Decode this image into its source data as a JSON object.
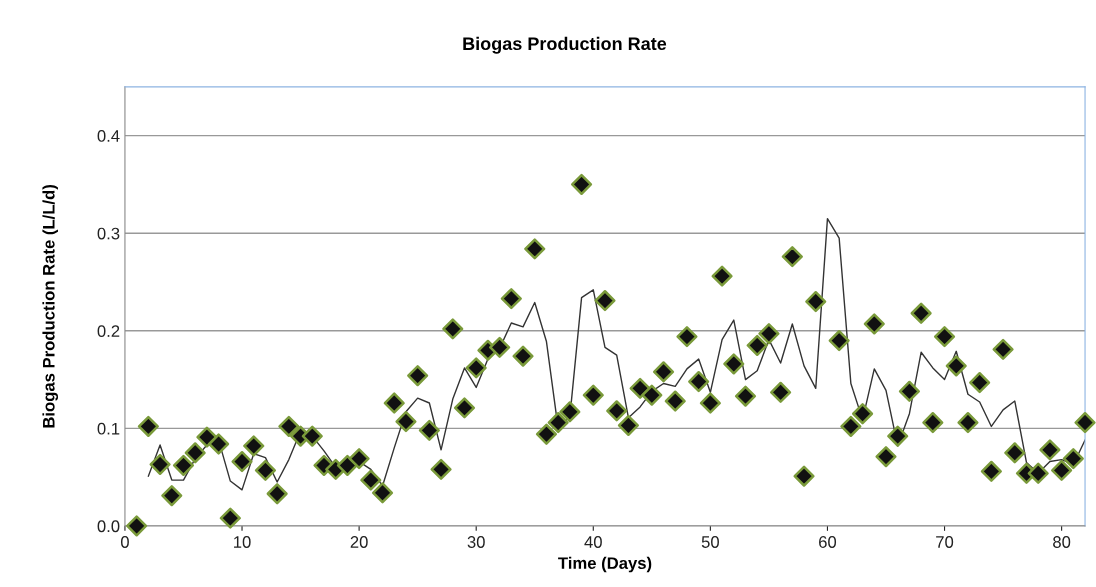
{
  "chart_data": {
    "type": "scatter",
    "title": "Biogas Production Rate",
    "xlabel": "Time (Days)",
    "ylabel": "Biogas Production Rate (L/L/d)",
    "xlim": [
      0,
      82
    ],
    "xticks": [
      0,
      10,
      20,
      30,
      40,
      50,
      60,
      70,
      80
    ],
    "ylim": [
      0,
      0.45
    ],
    "yticks": [
      {
        "value": 0,
        "label": "0.0"
      },
      0.1,
      0.2,
      0.3,
      0.4
    ],
    "grid": "y",
    "legend": false,
    "x": [
      1,
      2,
      3,
      4,
      5,
      6,
      7,
      8,
      9,
      10,
      11,
      12,
      13,
      14,
      15,
      16,
      17,
      18,
      19,
      20,
      21,
      22,
      23,
      24,
      25,
      26,
      27,
      28,
      29,
      30,
      31,
      32,
      33,
      34,
      35,
      36,
      37,
      38,
      39,
      40,
      41,
      42,
      43,
      44,
      45,
      46,
      47,
      48,
      49,
      50,
      51,
      52,
      53,
      54,
      55,
      56,
      57,
      58,
      59,
      60,
      61,
      62,
      63,
      64,
      65,
      66,
      67,
      68,
      69,
      70,
      71,
      72,
      73,
      74,
      75,
      76,
      77,
      78,
      79,
      80,
      81,
      82
    ],
    "series": [
      {
        "marker": "diamond",
        "color": "#111111",
        "values": [
          0.0,
          0.102,
          0.063,
          0.031,
          0.062,
          0.075,
          0.091,
          0.084,
          0.008,
          0.066,
          0.082,
          0.057,
          0.033,
          0.102,
          0.092,
          0.092,
          0.062,
          0.058,
          0.062,
          0.069,
          0.047,
          0.034,
          0.126,
          0.107,
          0.154,
          0.098,
          0.058,
          0.202,
          0.121,
          0.162,
          0.18,
          0.183,
          0.233,
          0.174,
          0.284,
          0.094,
          0.106,
          0.117,
          0.35,
          0.134,
          0.231,
          0.118,
          0.103,
          0.141,
          0.134,
          0.158,
          0.128,
          0.194,
          0.148,
          0.126,
          0.256,
          0.166,
          0.133,
          0.185,
          0.197,
          0.137,
          0.276,
          0.051,
          0.23,
          null,
          0.19,
          0.102,
          0.115,
          0.207,
          0.071,
          0.092,
          0.138,
          0.218,
          0.106,
          0.194,
          0.164,
          0.106,
          0.147,
          0.056,
          0.181,
          0.075,
          0.054,
          0.054,
          0.078,
          0.057,
          0.069,
          0.106
        ]
      },
      {
        "type": "line",
        "color": "#333333",
        "line_style": "solid",
        "x": [
          2,
          3,
          4,
          5,
          6,
          7,
          8,
          9,
          10,
          11,
          12,
          13,
          14,
          15,
          16,
          17,
          18,
          19,
          20,
          21,
          22,
          23,
          24,
          25,
          26,
          27,
          28,
          29,
          30,
          31,
          32,
          33,
          34,
          35,
          36,
          37,
          38,
          39,
          40,
          41,
          42,
          43,
          44,
          45,
          46,
          47,
          48,
          49,
          50,
          51,
          52,
          53,
          54,
          55,
          56,
          57,
          58,
          59,
          60,
          61,
          62,
          63,
          64,
          65,
          66,
          67,
          68,
          69,
          70,
          71,
          72,
          73,
          74,
          75,
          76,
          77,
          78,
          79,
          80,
          81,
          82
        ],
        "values": [
          0.051,
          0.083,
          0.047,
          0.047,
          0.069,
          0.083,
          0.088,
          0.046,
          0.037,
          0.074,
          0.07,
          0.045,
          0.068,
          0.097,
          0.092,
          0.077,
          0.06,
          0.06,
          0.066,
          0.058,
          0.041,
          0.08,
          0.117,
          0.131,
          0.126,
          0.078,
          0.13,
          0.162,
          0.142,
          0.171,
          0.182,
          0.208,
          0.204,
          0.229,
          0.189,
          0.1,
          0.112,
          0.234,
          0.242,
          0.183,
          0.175,
          0.111,
          0.122,
          0.138,
          0.146,
          0.143,
          0.161,
          0.171,
          0.137,
          0.191,
          0.211,
          0.15,
          0.159,
          0.191,
          0.167,
          0.207,
          0.164,
          0.141,
          0.315,
          0.295,
          0.146,
          0.109,
          0.161,
          0.139,
          0.082,
          0.115,
          0.178,
          0.162,
          0.15,
          0.179,
          0.135,
          0.127,
          0.102,
          0.119,
          0.128,
          0.065,
          0.054,
          0.066,
          0.068,
          0.063,
          0.088
        ]
      }
    ]
  }
}
